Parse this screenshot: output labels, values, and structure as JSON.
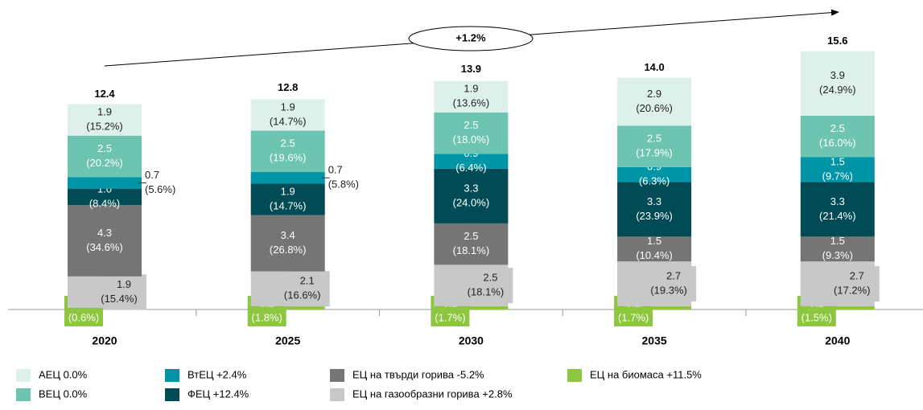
{
  "chart_data": {
    "type": "stacked-bar",
    "annotation": "+1.2%",
    "categories": [
      "2020",
      "2025",
      "2030",
      "2035",
      "2040"
    ],
    "totals": [
      12.4,
      12.8,
      13.9,
      14.0,
      15.6
    ],
    "total_labels": [
      "12.4",
      "12.8",
      "13.9",
      "14.0",
      "15.6"
    ],
    "series": [
      {
        "name": "ЕЦ на биомаса +11.5%",
        "color": "#8dc63f",
        "values": [
          0.1,
          0.2,
          0.2,
          0.2,
          0.2
        ],
        "shares": [
          "(0.6%)",
          "(1.8%)",
          "(1.7%)",
          "(1.7%)",
          "(1.5%)"
        ]
      },
      {
        "name": "ЕЦ на газообразни горива +2.8%",
        "color": "#c8c8c8",
        "values": [
          1.9,
          2.1,
          2.5,
          2.7,
          2.7
        ],
        "shares": [
          "(15.4%)",
          "(16.6%)",
          "(18.1%)",
          "(19.3%)",
          "(17.2%)"
        ]
      },
      {
        "name": "ЕЦ на твърди горива -5.2%",
        "color": "#757575",
        "values": [
          4.3,
          3.4,
          2.5,
          1.5,
          1.5
        ],
        "shares": [
          "(34.6%)",
          "(26.8%)",
          "(18.1%)",
          "(10.4%)",
          "(9.3%)"
        ]
      },
      {
        "name": "ФЕЦ +12.4%",
        "color": "#004b55",
        "values": [
          1.0,
          1.9,
          3.3,
          3.3,
          3.3
        ],
        "value_labels": [
          "1.0",
          "1.9",
          "3.3",
          "3.3",
          "3.3"
        ],
        "shares": [
          "(8.4%)",
          "(14.7%)",
          "(24.0%)",
          "(23.9%)",
          "(21.4%)"
        ]
      },
      {
        "name": "ВтЕЦ +2.4%",
        "color": "#0095a6",
        "values": [
          0.7,
          0.7,
          0.9,
          0.9,
          1.5
        ],
        "shares": [
          "(5.6%)",
          "(5.8%)",
          "(6.4%)",
          "(6.3%)",
          "(9.7%)"
        ]
      },
      {
        "name": "ВЕЦ 0.0%",
        "color": "#6cc4b1",
        "values": [
          2.5,
          2.5,
          2.5,
          2.5,
          2.5
        ],
        "shares": [
          "(20.2%)",
          "(19.6%)",
          "(18.0%)",
          "(17.9%)",
          "(16.0%)"
        ]
      },
      {
        "name": "АЕЦ 0.0%",
        "color": "#def0ea",
        "values": [
          1.9,
          1.9,
          1.9,
          2.9,
          3.9
        ],
        "shares": [
          "(15.2%)",
          "(14.7%)",
          "(13.6%)",
          "(20.6%)",
          "(24.9%)"
        ]
      }
    ]
  }
}
